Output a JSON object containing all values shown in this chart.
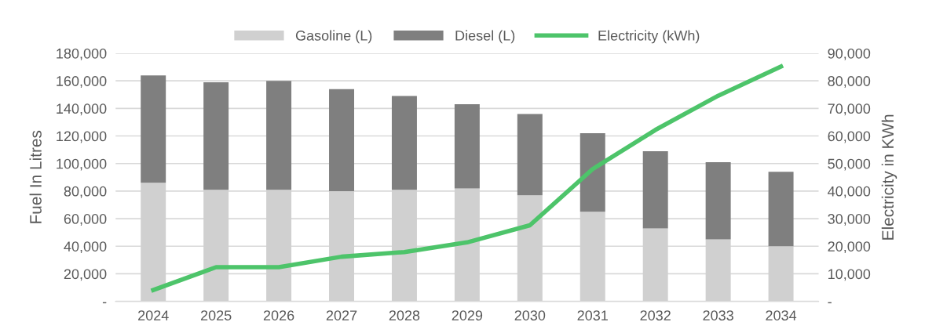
{
  "chart_data": {
    "type": "bar",
    "stacked": true,
    "ylabel": "Fuel In Litres",
    "y2label": "Electricity in KWh",
    "categories": [
      "2024",
      "2025",
      "2026",
      "2027",
      "2028",
      "2029",
      "2030",
      "2031",
      "2032",
      "2033",
      "2034"
    ],
    "series": [
      {
        "name": "Gasoline (L)",
        "color": "#d0d0d0",
        "values": [
          86000,
          81000,
          81000,
          80000,
          81000,
          82000,
          77000,
          65000,
          53000,
          45000,
          40000
        ]
      },
      {
        "name": "Diesel (L)",
        "color": "#7f7f7f",
        "values": [
          78000,
          78000,
          79000,
          74000,
          68000,
          61000,
          59000,
          57000,
          56000,
          56000,
          54000
        ]
      },
      {
        "name": "Electricity (kWh)",
        "type": "line",
        "axis": "y2",
        "color": "#4dc46a",
        "values": [
          4100,
          12400,
          12400,
          16200,
          17900,
          21400,
          27600,
          48000,
          62200,
          74600,
          85200
        ]
      }
    ],
    "ylim": [
      0,
      180000
    ],
    "yticks": [
      {
        "value": 0,
        "label": "-"
      },
      {
        "value": 20000,
        "label": "20,000"
      },
      {
        "value": 40000,
        "label": "40,000"
      },
      {
        "value": 60000,
        "label": "60,000"
      },
      {
        "value": 80000,
        "label": "80,000"
      },
      {
        "value": 100000,
        "label": "100,000"
      },
      {
        "value": 120000,
        "label": "120,000"
      },
      {
        "value": 140000,
        "label": "140,000"
      },
      {
        "value": 160000,
        "label": "160,000"
      },
      {
        "value": 180000,
        "label": "180,000"
      }
    ],
    "y2lim": [
      0,
      90000
    ],
    "y2ticks": [
      {
        "value": 0,
        "label": "-"
      },
      {
        "value": 10000,
        "label": "10,000"
      },
      {
        "value": 20000,
        "label": "20,000"
      },
      {
        "value": 30000,
        "label": "30,000"
      },
      {
        "value": 40000,
        "label": "40,000"
      },
      {
        "value": 50000,
        "label": "50,000"
      },
      {
        "value": 60000,
        "label": "60,000"
      },
      {
        "value": 70000,
        "label": "70,000"
      },
      {
        "value": 80000,
        "label": "80,000"
      },
      {
        "value": 90000,
        "label": "90,000"
      }
    ],
    "grid": "y",
    "legend": "top",
    "marker": "none",
    "line_style": "solid"
  }
}
